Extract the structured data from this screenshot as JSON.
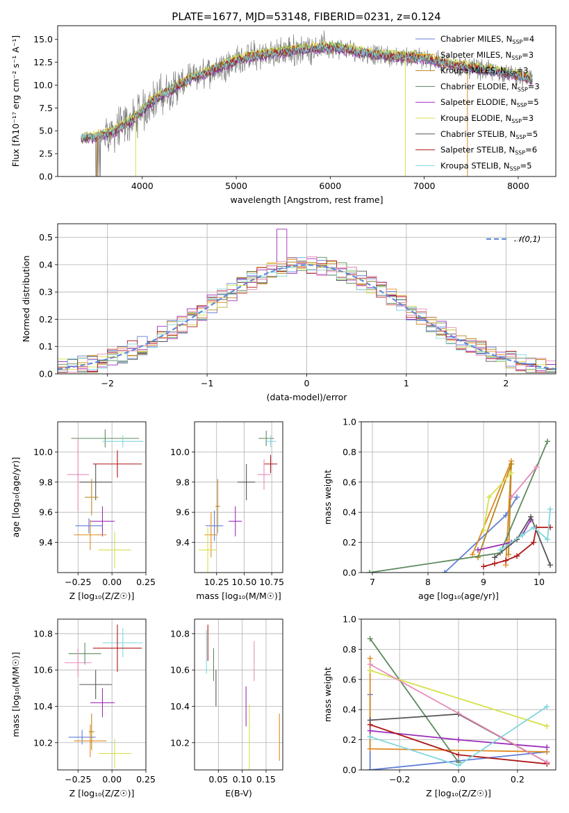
{
  "colors": {
    "Chabrier MILES": "#5f7fd8",
    "Salpeter MILES": "#e0891f",
    "Kroupa MILES": "#b8861b",
    "Chabrier ELODIE": "#5d8a5d",
    "Salpeter ELODIE": "#9b2db8",
    "Kroupa ELODIE": "#d6e04a",
    "Chabrier STELIB": "#545454",
    "Salpeter STELIB": "#b01717",
    "Kroupa STELIB": "#7fd5de",
    "Pink": "#e78bb8",
    "Data": "#7a7a7a",
    "Normal": "#5f8ad8"
  },
  "chart_data": [
    {
      "type": "line",
      "title": "PLATE=1677, MJD=53148, FIBERID=0231, z=0.124",
      "xlabel": "wavelength [Angstrom, rest frame]",
      "ylabel": "Flux [fλ10⁻¹⁷ erg cm⁻² s⁻¹ A⁻¹]",
      "xlim": [
        3100,
        8400
      ],
      "ylim": [
        0,
        16.5
      ],
      "xticks": [
        4000,
        5000,
        6000,
        7000,
        8000
      ],
      "yticks": [
        "0.0",
        "2.5",
        "5.0",
        "7.5",
        "10.0",
        "12.5",
        "15.0"
      ],
      "legend_position": "top-right",
      "legend": [
        {
          "name": "Chabrier MILES",
          "nssp": "4"
        },
        {
          "name": "Salpeter MILES",
          "nssp": "3"
        },
        {
          "name": "Kroupa MILES",
          "nssp": "3"
        },
        {
          "name": "Chabrier ELODIE",
          "nssp": "3"
        },
        {
          "name": "Salpeter ELODIE",
          "nssp": "5"
        },
        {
          "name": "Kroupa ELODIE",
          "nssp": "3"
        },
        {
          "name": "Chabrier STELIB",
          "nssp": "5"
        },
        {
          "name": "Salpeter STELIB",
          "nssp": "6"
        },
        {
          "name": "Kroupa STELIB",
          "nssp": "5"
        }
      ],
      "continuum": {
        "x": [
          3350,
          3500,
          3700,
          3900,
          4100,
          4300,
          4500,
          4700,
          4900,
          5100,
          5300,
          5500,
          5700,
          5900,
          6100,
          6300,
          6500,
          6700,
          6900,
          7100,
          7300,
          7500,
          7700,
          7900,
          8150
        ],
        "y": [
          4.1,
          4.3,
          4.9,
          6.2,
          8.2,
          9.4,
          10.6,
          11.4,
          12.3,
          13.0,
          13.3,
          13.6,
          13.9,
          14.1,
          14.0,
          13.6,
          13.3,
          13.1,
          13.0,
          12.7,
          12.2,
          11.9,
          11.6,
          11.2,
          10.6
        ]
      },
      "model_offsets": [
        0.0,
        0.15,
        -0.1,
        0.25,
        -0.2,
        0.3,
        -0.05,
        0.1,
        0.05
      ]
    },
    {
      "type": "bar",
      "ylabel": "Normed distribution",
      "xlabel": "(data-model)/error",
      "xlim": [
        -2.5,
        2.5
      ],
      "ylim": [
        0,
        0.55
      ],
      "xticks": [
        "−2",
        "−1",
        "0",
        "1",
        "2"
      ],
      "yticks": [
        "0.0",
        "0.1",
        "0.2",
        "0.3",
        "0.4",
        "0.5"
      ],
      "legend_position": "top-right",
      "legend": [
        {
          "name": "𝒩(0,1)"
        }
      ],
      "bin_width": 0.1,
      "peak_bin_value": 0.53
    },
    {
      "type": "scatter",
      "xlabel": "Z [log₁₀(Z/Z☉)]",
      "ylabel": "age  [log₁₀(age/yr)]",
      "xlim": [
        -0.4,
        0.25
      ],
      "ylim": [
        9.2,
        10.2
      ],
      "xticks": [
        "−0.25",
        "0.00",
        "0.25"
      ],
      "yticks": [
        "9.4",
        "9.6",
        "9.8",
        "10.0"
      ],
      "points": [
        {
          "c": "Chabrier ELODIE",
          "x": -0.05,
          "y": 10.09,
          "ex": 0.25,
          "ey": 0.06
        },
        {
          "c": "Kroupa STELIB",
          "x": 0.08,
          "y": 10.07,
          "ex": 0.15,
          "ey": 0.04
        },
        {
          "c": "Salpeter STELIB",
          "x": 0.04,
          "y": 9.92,
          "ex": 0.18,
          "ey": 0.09
        },
        {
          "c": "Pink",
          "x": -0.25,
          "y": 9.85,
          "ex": 0.08,
          "ey": 0.24
        },
        {
          "c": "Chabrier STELIB",
          "x": -0.12,
          "y": 9.8,
          "ex": 0.12,
          "ey": 0.12
        },
        {
          "c": "Kroupa MILES",
          "x": -0.15,
          "y": 9.7,
          "ex": 0.05,
          "ey": 0.12
        },
        {
          "c": "Salpeter ELODIE",
          "x": -0.07,
          "y": 9.54,
          "ex": 0.09,
          "ey": 0.1
        },
        {
          "c": "Chabrier MILES",
          "x": -0.17,
          "y": 9.51,
          "ex": 0.1,
          "ey": 0.05
        },
        {
          "c": "Salpeter MILES",
          "x": -0.16,
          "y": 9.45,
          "ex": 0.12,
          "ey": 0.1
        },
        {
          "c": "Kroupa ELODIE",
          "x": 0.02,
          "y": 9.35,
          "ex": 0.12,
          "ey": 0.12
        }
      ]
    },
    {
      "type": "scatter",
      "xlabel": "mass [log₁₀(M/M☉)]",
      "xlim": [
        10.05,
        10.85
      ],
      "ylim": [
        9.2,
        10.2
      ],
      "xticks": [
        "10.25",
        "10.50",
        "10.75"
      ],
      "yticks": [
        "9.4",
        "9.6",
        "9.8",
        "10.0"
      ],
      "points": [
        {
          "c": "Chabrier ELODIE",
          "x": 10.7,
          "y": 10.09,
          "ex": 0.07,
          "ey": 0.05
        },
        {
          "c": "Kroupa STELIB",
          "x": 10.74,
          "y": 10.07,
          "ex": 0.05,
          "ey": 0.04
        },
        {
          "c": "Salpeter STELIB",
          "x": 10.74,
          "y": 9.92,
          "ex": 0.06,
          "ey": 0.06
        },
        {
          "c": "Pink",
          "x": 10.68,
          "y": 9.85,
          "ex": 0.06,
          "ey": 0.1
        },
        {
          "c": "Chabrier STELIB",
          "x": 10.52,
          "y": 9.8,
          "ex": 0.08,
          "ey": 0.12
        },
        {
          "c": "Kroupa MILES",
          "x": 10.26,
          "y": 9.64,
          "ex": 0.02,
          "ey": 0.18
        },
        {
          "c": "Salpeter ELODIE",
          "x": 10.42,
          "y": 9.54,
          "ex": 0.06,
          "ey": 0.1
        },
        {
          "c": "Chabrier MILES",
          "x": 10.23,
          "y": 9.51,
          "ex": 0.08,
          "ey": 0.1
        },
        {
          "c": "Salpeter MILES",
          "x": 10.2,
          "y": 9.45,
          "ex": 0.06,
          "ey": 0.15
        },
        {
          "c": "Kroupa ELODIE",
          "x": 10.17,
          "y": 9.35,
          "ex": 0.08,
          "ey": 0.15
        }
      ]
    },
    {
      "type": "line",
      "xlabel": "age  [log₁₀(age/yr)]",
      "ylabel": "mass weight",
      "xlim": [
        6.8,
        10.3
      ],
      "ylim": [
        0,
        1
      ],
      "xticks": [
        "7",
        "8",
        "9",
        "10"
      ],
      "yticks": [
        "0.0",
        "0.2",
        "0.4",
        "0.6",
        "0.8",
        "1.0"
      ],
      "series": [
        {
          "c": "Chabrier MILES",
          "x": [
            8.3,
            9.4,
            9.6
          ],
          "y": [
            0.0,
            0.38,
            0.5
          ]
        },
        {
          "c": "Salpeter MILES",
          "x": [
            8.8,
            9.5,
            9.4
          ],
          "y": [
            0.12,
            0.74,
            0.05
          ]
        },
        {
          "c": "Kroupa MILES",
          "x": [
            8.9,
            9.5,
            9.45
          ],
          "y": [
            0.1,
            0.72,
            0.12
          ]
        },
        {
          "c": "Chabrier ELODIE",
          "x": [
            6.95,
            9.3,
            10.15
          ],
          "y": [
            0.0,
            0.13,
            0.87
          ]
        },
        {
          "c": "Salpeter ELODIE",
          "x": [
            8.9,
            9.5,
            9.7,
            9.85
          ],
          "y": [
            0.15,
            0.2,
            0.25,
            0.35
          ]
        },
        {
          "c": "Kroupa ELODIE",
          "x": [
            9.0,
            9.1,
            9.5
          ],
          "y": [
            0.28,
            0.5,
            0.66
          ]
        },
        {
          "c": "Chabrier STELIB",
          "x": [
            9.2,
            9.6,
            9.85,
            10.2
          ],
          "y": [
            0.1,
            0.22,
            0.37,
            0.05
          ]
        },
        {
          "c": "Salpeter STELIB",
          "x": [
            9.0,
            9.2,
            9.4,
            9.6,
            9.9,
            9.95,
            10.2
          ],
          "y": [
            0.04,
            0.06,
            0.08,
            0.11,
            0.2,
            0.3,
            0.3
          ]
        },
        {
          "c": "Kroupa STELIB",
          "x": [
            9.3,
            9.7,
            9.9,
            10.15,
            10.2
          ],
          "y": [
            0.15,
            0.25,
            0.3,
            0.22,
            0.42
          ]
        },
        {
          "c": "Pink",
          "x": [
            9.5,
            9.95
          ],
          "y": [
            0.5,
            0.7
          ]
        }
      ]
    },
    {
      "type": "scatter",
      "xlabel": "Z [log₁₀(Z/Z☉)]",
      "ylabel": "mass [log₁₀(M/M☉)]",
      "xlim": [
        -0.4,
        0.25
      ],
      "ylim": [
        10.05,
        10.88
      ],
      "xticks": [
        "−0.25",
        "0.00",
        "0.25"
      ],
      "yticks": [
        "10.2",
        "10.4",
        "10.6",
        "10.8"
      ],
      "points": [
        {
          "c": "Kroupa STELIB",
          "x": 0.08,
          "y": 10.75,
          "ex": 0.15,
          "ey": 0.08
        },
        {
          "c": "Salpeter STELIB",
          "x": 0.04,
          "y": 10.72,
          "ex": 0.18,
          "ey": 0.13
        },
        {
          "c": "Chabrier ELODIE",
          "x": -0.2,
          "y": 10.69,
          "ex": 0.12,
          "ey": 0.06
        },
        {
          "c": "Pink",
          "x": -0.25,
          "y": 10.64,
          "ex": 0.1,
          "ey": 0.08
        },
        {
          "c": "Chabrier STELIB",
          "x": -0.12,
          "y": 10.52,
          "ex": 0.12,
          "ey": 0.08
        },
        {
          "c": "Salpeter ELODIE",
          "x": -0.07,
          "y": 10.42,
          "ex": 0.09,
          "ey": 0.08
        },
        {
          "c": "Chabrier MILES",
          "x": -0.22,
          "y": 10.23,
          "ex": 0.1,
          "ey": 0.04
        },
        {
          "c": "Salpeter MILES",
          "x": -0.16,
          "y": 10.21,
          "ex": 0.12,
          "ey": 0.09
        },
        {
          "c": "Kroupa MILES",
          "x": -0.15,
          "y": 10.26,
          "ex": 0.02,
          "ey": 0.1
        },
        {
          "c": "Kroupa ELODIE",
          "x": 0.02,
          "y": 10.14,
          "ex": 0.12,
          "ey": 0.08
        }
      ]
    },
    {
      "type": "scatter",
      "xlabel": "E(B-V)",
      "xlim": [
        0.0,
        0.185
      ],
      "ylim": [
        10.05,
        10.88
      ],
      "xticks": [
        "0.05",
        "0.10",
        "0.15"
      ],
      "yticks": [
        "10.2",
        "10.4",
        "10.6",
        "10.8"
      ],
      "points": [
        {
          "c": "Salpeter STELIB",
          "x": 0.028,
          "y": 10.75,
          "ex": 0,
          "ey": 0.1
        },
        {
          "c": "Kroupa STELIB",
          "x": 0.025,
          "y": 10.7,
          "ex": 0,
          "ey": 0.12
        },
        {
          "c": "Chabrier ELODIE",
          "x": 0.04,
          "y": 10.63,
          "ex": 0,
          "ey": 0.09
        },
        {
          "c": "Chabrier STELIB",
          "x": 0.045,
          "y": 10.5,
          "ex": 0,
          "ey": 0.1
        },
        {
          "c": "Pink",
          "x": 0.125,
          "y": 10.65,
          "ex": 0,
          "ey": 0.11
        },
        {
          "c": "Salpeter ELODIE",
          "x": 0.108,
          "y": 10.4,
          "ex": 0,
          "ey": 0.11
        },
        {
          "c": "Kroupa ELODIE",
          "x": 0.115,
          "y": 10.23,
          "ex": 0,
          "ey": 0.18
        },
        {
          "c": "Salpeter MILES",
          "x": 0.178,
          "y": 10.23,
          "ex": 0,
          "ey": 0.13
        }
      ]
    },
    {
      "type": "line",
      "xlabel": "Z [log₁₀(Z/Z☉)]",
      "ylabel": "mass weight",
      "xlim": [
        -0.33,
        0.33
      ],
      "ylim": [
        0,
        1
      ],
      "xticks": [
        "−0.2",
        "0.0",
        "0.2"
      ],
      "yticks": [
        "0.0",
        "0.2",
        "0.4",
        "0.6",
        "0.8",
        "1.0"
      ],
      "series": [
        {
          "c": "Chabrier MILES",
          "x": [
            -0.3,
            -0.3,
            0.0,
            0.3
          ],
          "y": [
            0.5,
            0.0,
            0.06,
            0.12
          ]
        },
        {
          "c": "Salpeter MILES",
          "x": [
            -0.3,
            -0.3,
            0.3
          ],
          "y": [
            0.74,
            0.14,
            0.12
          ]
        },
        {
          "c": "Chabrier ELODIE",
          "x": [
            -0.3,
            0.0
          ],
          "y": [
            0.87,
            0.05
          ]
        },
        {
          "c": "Salpeter ELODIE",
          "x": [
            -0.3,
            0.0,
            0.3
          ],
          "y": [
            0.26,
            0.2,
            0.15
          ]
        },
        {
          "c": "Kroupa ELODIE",
          "x": [
            -0.3,
            0.3
          ],
          "y": [
            0.66,
            0.29
          ]
        },
        {
          "c": "Chabrier STELIB",
          "x": [
            -0.3,
            0.0,
            0.3
          ],
          "y": [
            0.33,
            0.37,
            0.05
          ]
        },
        {
          "c": "Salpeter STELIB",
          "x": [
            -0.3,
            0.0,
            0.3
          ],
          "y": [
            0.3,
            0.1,
            0.04
          ]
        },
        {
          "c": "Kroupa STELIB",
          "x": [
            -0.3,
            0.0,
            0.3
          ],
          "y": [
            0.22,
            0.03,
            0.42
          ]
        },
        {
          "c": "Pink",
          "x": [
            -0.3,
            0.3
          ],
          "y": [
            0.7,
            0.05
          ]
        }
      ]
    }
  ]
}
